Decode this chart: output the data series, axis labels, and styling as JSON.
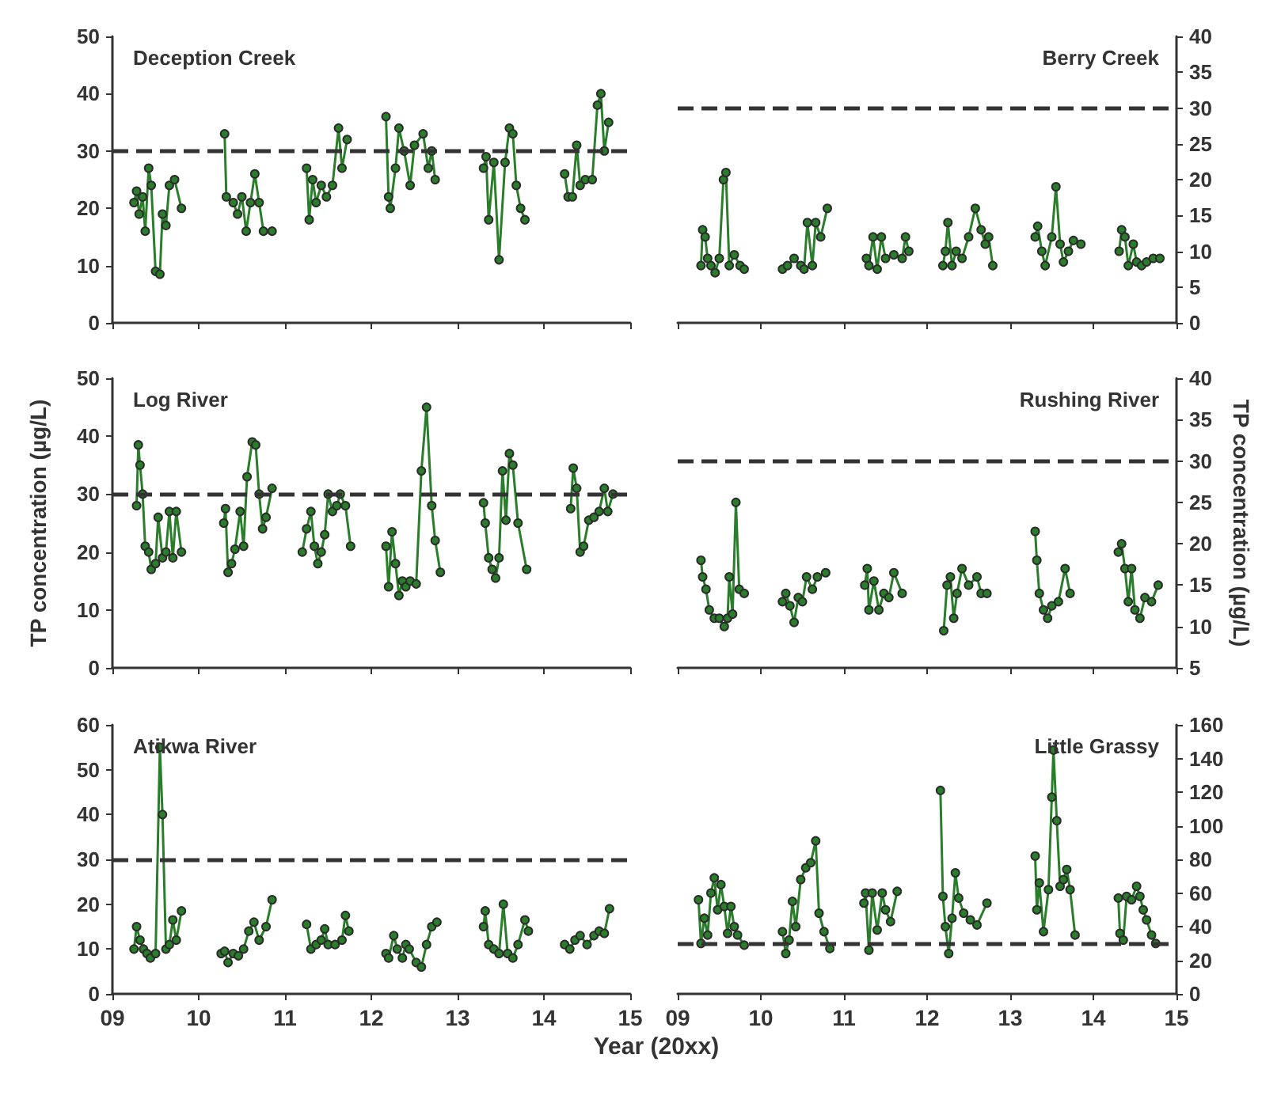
{
  "chart_data": [
    {
      "type": "line",
      "title": "Deception Creek",
      "marker": "circle",
      "tick_labels": "y",
      "xlim": [
        9,
        15
      ],
      "xticks": [
        {
          "value": 9,
          "label": null
        },
        {
          "value": 10,
          "label": null
        },
        {
          "value": 11,
          "label": null
        },
        {
          "value": 12,
          "label": null
        },
        {
          "value": 13,
          "label": null
        },
        {
          "value": 14,
          "label": null
        },
        {
          "value": 15,
          "label": null
        }
      ],
      "ylim": [
        0,
        50
      ],
      "yticks": [
        0,
        10,
        20,
        30,
        40,
        50
      ],
      "ref_lines": [
        {
          "axis": "y",
          "value": 30,
          "line_style": "dashed",
          "color": "#333333"
        }
      ],
      "series": [
        {
          "color": "#2a7d2a",
          "x": [
            9.25,
            9.28,
            9.31,
            9.35,
            9.38,
            9.42,
            9.45,
            9.5,
            9.55,
            9.58,
            9.62,
            9.66,
            9.72,
            9.8,
            10.05,
            10.3,
            10.32,
            10.4,
            10.45,
            10.5,
            10.55,
            10.6,
            10.65,
            10.7,
            10.75,
            10.85,
            11.05,
            11.25,
            11.28,
            11.32,
            11.36,
            11.42,
            11.48,
            11.55,
            11.62,
            11.66,
            11.72,
            12.0,
            12.17,
            12.2,
            12.22,
            12.28,
            12.32,
            12.38,
            12.45,
            12.5,
            12.6,
            12.66,
            12.7,
            12.74,
            13.0,
            13.3,
            13.33,
            13.36,
            13.42,
            13.48,
            13.55,
            13.6,
            13.64,
            13.68,
            13.73,
            13.78,
            14.0,
            14.24,
            14.28,
            14.33,
            14.38,
            14.42,
            14.48,
            14.56,
            14.62,
            14.66,
            14.7,
            14.75
          ],
          "values": [
            21,
            23,
            19,
            22,
            16,
            27,
            24,
            9,
            8.5,
            19,
            17,
            24,
            25,
            20,
            null,
            33,
            22,
            21,
            19,
            22,
            16,
            21,
            26,
            21,
            16,
            16,
            null,
            27,
            18,
            25,
            21,
            24,
            22,
            24,
            34,
            27,
            32,
            null,
            36,
            22,
            20,
            27,
            34,
            30,
            24,
            31,
            33,
            27,
            30,
            25,
            null,
            27,
            29,
            18,
            28,
            11,
            28,
            34,
            33,
            24,
            20,
            18,
            null,
            26,
            22,
            22,
            31,
            24,
            25,
            25,
            38,
            40,
            30,
            35
          ]
        }
      ]
    },
    {
      "type": "line",
      "title": "Berry Creek",
      "marker": "circle",
      "tick_labels": "y",
      "xlim": [
        9,
        15
      ],
      "xticks": [
        {
          "value": 9,
          "label": null
        },
        {
          "value": 10,
          "label": null
        },
        {
          "value": 11,
          "label": null
        },
        {
          "value": 12,
          "label": null
        },
        {
          "value": 13,
          "label": null
        },
        {
          "value": 14,
          "label": null
        },
        {
          "value": 15,
          "label": null
        }
      ],
      "ylim": [
        0,
        40
      ],
      "yticks": [
        0,
        5,
        10,
        15,
        20,
        25,
        30,
        35,
        40
      ],
      "ref_lines": [
        {
          "axis": "y",
          "value": 30,
          "line_style": "dashed",
          "color": "#333333"
        }
      ],
      "series": [
        {
          "color": "#2a7d2a",
          "x": [
            9.28,
            9.3,
            9.33,
            9.36,
            9.4,
            9.45,
            9.5,
            9.55,
            9.58,
            9.62,
            9.68,
            9.75,
            9.8,
            10.05,
            10.26,
            10.32,
            10.4,
            10.48,
            10.52,
            10.56,
            10.62,
            10.66,
            10.72,
            10.8,
            11.05,
            11.27,
            11.3,
            11.35,
            11.4,
            11.45,
            11.5,
            11.6,
            11.7,
            11.74,
            11.78,
            12.0,
            12.19,
            12.22,
            12.25,
            12.3,
            12.35,
            12.42,
            12.5,
            12.58,
            12.65,
            12.7,
            12.74,
            12.79,
            13.05,
            13.3,
            13.33,
            13.38,
            13.42,
            13.5,
            13.55,
            13.6,
            13.64,
            13.7,
            13.76,
            13.85,
            14.1,
            14.31,
            14.34,
            14.38,
            14.42,
            14.48,
            14.52,
            14.58,
            14.64,
            14.72,
            14.8
          ],
          "values": [
            8,
            13,
            12,
            9,
            8,
            7,
            9,
            20,
            21,
            8,
            9.5,
            8,
            7.5,
            null,
            7.5,
            8,
            9,
            8,
            7.5,
            14,
            8,
            14,
            12,
            16,
            null,
            9,
            8,
            12,
            7.5,
            12,
            9,
            9.5,
            9,
            12,
            10,
            null,
            8,
            10,
            14,
            8,
            10,
            9,
            12,
            16,
            13,
            11,
            12,
            8,
            null,
            12,
            13.5,
            10,
            8,
            12,
            19,
            11,
            8.5,
            10,
            11.5,
            11,
            null,
            10,
            13,
            12,
            8,
            11,
            8.5,
            8,
            8.5,
            9,
            9
          ]
        }
      ]
    },
    {
      "type": "line",
      "title": "Log River",
      "ylabel": "TP concentration (µg/L)",
      "marker": "circle",
      "tick_labels": "y",
      "xlim": [
        9,
        15
      ],
      "xticks": [
        {
          "value": 9,
          "label": null
        },
        {
          "value": 10,
          "label": null
        },
        {
          "value": 11,
          "label": null
        },
        {
          "value": 12,
          "label": null
        },
        {
          "value": 13,
          "label": null
        },
        {
          "value": 14,
          "label": null
        },
        {
          "value": 15,
          "label": null
        }
      ],
      "ylim": [
        0,
        50
      ],
      "yticks": [
        0,
        10,
        20,
        30,
        40,
        50
      ],
      "ref_lines": [
        {
          "axis": "y",
          "value": 30,
          "line_style": "dashed",
          "color": "#333333"
        }
      ],
      "series": [
        {
          "color": "#2a7d2a",
          "x": [
            9.28,
            9.3,
            9.32,
            9.35,
            9.38,
            9.42,
            9.45,
            9.5,
            9.53,
            9.58,
            9.62,
            9.66,
            9.7,
            9.74,
            9.8,
            10.05,
            10.29,
            10.31,
            10.34,
            10.38,
            10.42,
            10.48,
            10.52,
            10.56,
            10.62,
            10.66,
            10.7,
            10.74,
            10.78,
            10.85,
            11.05,
            11.2,
            11.25,
            11.3,
            11.34,
            11.38,
            11.42,
            11.46,
            11.5,
            11.55,
            11.6,
            11.64,
            11.7,
            11.76,
            12.0,
            12.17,
            12.2,
            12.24,
            12.28,
            12.32,
            12.36,
            12.4,
            12.45,
            12.52,
            12.58,
            12.64,
            12.7,
            12.74,
            12.8,
            13.05,
            13.3,
            13.32,
            13.36,
            13.4,
            13.44,
            13.48,
            13.52,
            13.56,
            13.6,
            13.64,
            13.7,
            13.8,
            14.1,
            14.31,
            14.34,
            14.38,
            14.42,
            14.46,
            14.52,
            14.58,
            14.64,
            14.7,
            14.74,
            14.8
          ],
          "values": [
            28,
            38.5,
            35,
            30,
            21,
            20,
            17,
            18,
            26,
            19,
            20,
            27,
            19,
            27,
            20,
            null,
            25,
            27.5,
            16.5,
            18,
            20.5,
            27,
            21,
            33,
            39,
            38.5,
            30,
            24,
            26,
            31,
            null,
            20,
            24,
            27,
            21,
            18,
            20,
            23,
            30,
            27,
            28,
            30,
            28,
            21,
            null,
            21,
            14,
            23.5,
            18,
            12.5,
            15,
            14,
            15,
            14.5,
            34,
            45,
            28,
            22,
            16.5,
            null,
            28.5,
            25,
            19,
            17,
            15.5,
            19,
            34,
            25.5,
            37,
            35,
            25,
            17,
            null,
            27.5,
            34.5,
            31,
            20,
            21,
            25.5,
            26,
            27,
            31,
            27,
            30
          ]
        }
      ]
    },
    {
      "type": "line",
      "title": "Rushing River",
      "ylabel": "TP concentration (µg/L)",
      "marker": "circle",
      "tick_labels": "y",
      "xlim": [
        9,
        15
      ],
      "xticks": [
        {
          "value": 9,
          "label": null
        },
        {
          "value": 10,
          "label": null
        },
        {
          "value": 11,
          "label": null
        },
        {
          "value": 12,
          "label": null
        },
        {
          "value": 13,
          "label": null
        },
        {
          "value": 14,
          "label": null
        },
        {
          "value": 15,
          "label": null
        }
      ],
      "ylim": [
        5,
        40
      ],
      "yticks": [
        5,
        10,
        15,
        20,
        25,
        30,
        35,
        40
      ],
      "ref_lines": [
        {
          "axis": "y",
          "value": 30,
          "line_style": "dashed",
          "color": "#333333"
        }
      ],
      "series": [
        {
          "color": "#2a7d2a",
          "x": [
            9.28,
            9.3,
            9.34,
            9.38,
            9.44,
            9.5,
            9.56,
            9.6,
            9.62,
            9.66,
            9.7,
            9.74,
            9.8,
            10.05,
            10.26,
            10.3,
            10.35,
            10.4,
            10.45,
            10.5,
            10.55,
            10.62,
            10.68,
            10.78,
            11.05,
            11.25,
            11.28,
            11.3,
            11.36,
            11.42,
            11.48,
            11.54,
            11.6,
            11.7,
            12.0,
            12.2,
            12.24,
            12.28,
            12.32,
            12.36,
            12.42,
            12.5,
            12.6,
            12.65,
            12.72,
            13.05,
            13.3,
            13.32,
            13.35,
            13.4,
            13.45,
            13.5,
            13.58,
            13.66,
            13.72,
            14.05,
            14.3,
            14.34,
            14.38,
            14.42,
            14.46,
            14.5,
            14.56,
            14.62,
            14.7,
            14.78
          ],
          "values": [
            18,
            16,
            14.5,
            12,
            11,
            11,
            10,
            11,
            16,
            11.5,
            25,
            14.5,
            14,
            null,
            13,
            14,
            12.5,
            10.5,
            13.5,
            13,
            16,
            14.5,
            16,
            16.5,
            null,
            15,
            17,
            12,
            15.5,
            12,
            14,
            13.5,
            16.5,
            14,
            null,
            9.5,
            15,
            16,
            11,
            14,
            17,
            15,
            16,
            14,
            14,
            null,
            21.5,
            18,
            14,
            12,
            11,
            12.5,
            13,
            17,
            14,
            null,
            19,
            20,
            17,
            13,
            17,
            12,
            11,
            13.5,
            13,
            15
          ]
        }
      ]
    },
    {
      "type": "line",
      "title": "Atikwa River",
      "xlabel": "Year (20xx)",
      "marker": "circle",
      "xlim": [
        9,
        15
      ],
      "xticks": [
        {
          "value": 9,
          "label": "09"
        },
        10,
        11,
        12,
        13,
        14,
        15
      ],
      "ylim": [
        0,
        60
      ],
      "yticks": [
        0,
        10,
        20,
        30,
        40,
        50,
        60
      ],
      "ref_lines": [
        {
          "axis": "y",
          "value": 30,
          "line_style": "dashed",
          "color": "#333333"
        }
      ],
      "series": [
        {
          "color": "#2a7d2a",
          "x": [
            9.25,
            9.28,
            9.32,
            9.36,
            9.4,
            9.44,
            9.5,
            9.55,
            9.58,
            9.62,
            9.66,
            9.7,
            9.74,
            9.8,
            10.05,
            10.26,
            10.3,
            10.34,
            10.4,
            10.46,
            10.52,
            10.58,
            10.64,
            10.7,
            10.78,
            10.85,
            11.05,
            11.25,
            11.3,
            11.36,
            11.42,
            11.46,
            11.5,
            11.58,
            11.66,
            11.7,
            11.74,
            12.0,
            12.17,
            12.2,
            12.26,
            12.3,
            12.36,
            12.4,
            12.44,
            12.52,
            12.58,
            12.64,
            12.7,
            12.76,
            13.05,
            13.3,
            13.32,
            13.36,
            13.42,
            13.48,
            13.53,
            13.58,
            13.64,
            13.7,
            13.78,
            13.82,
            14.05,
            14.24,
            14.3,
            14.36,
            14.42,
            14.5,
            14.58,
            14.64,
            14.7,
            14.76
          ],
          "values": [
            10,
            15,
            12,
            10,
            9,
            8,
            9,
            55,
            40,
            10,
            11,
            16.5,
            12,
            18.5,
            null,
            9,
            9.5,
            7,
            9,
            8.5,
            10,
            14,
            16,
            12,
            15,
            21,
            null,
            15.5,
            10,
            11,
            12,
            14.5,
            11,
            11,
            12,
            17.5,
            14,
            null,
            9,
            8,
            13,
            10,
            8,
            11,
            10,
            7,
            6,
            11,
            15,
            16,
            null,
            15,
            18.5,
            11,
            10,
            9,
            20,
            9,
            8,
            11,
            16.5,
            14,
            null,
            11,
            10,
            12,
            13,
            11,
            13,
            14,
            13.5,
            19
          ]
        }
      ]
    },
    {
      "type": "line",
      "title": "Little Grassy",
      "marker": "circle",
      "xlim": [
        9,
        15
      ],
      "xticks": [
        {
          "value": 9,
          "label": "09"
        },
        10,
        11,
        12,
        13,
        14,
        15
      ],
      "ylim": [
        0,
        160
      ],
      "yticks": [
        0,
        20,
        40,
        60,
        80,
        100,
        120,
        140,
        160
      ],
      "ref_lines": [
        {
          "axis": "y",
          "value": 30,
          "line_style": "dashed",
          "color": "#333333"
        }
      ],
      "series": [
        {
          "color": "#2a7d2a",
          "x": [
            9.25,
            9.28,
            9.32,
            9.36,
            9.4,
            9.44,
            9.48,
            9.52,
            9.56,
            9.6,
            9.64,
            9.68,
            9.72,
            9.8,
            10.05,
            10.26,
            10.3,
            10.34,
            10.38,
            10.42,
            10.48,
            10.54,
            10.6,
            10.66,
            10.7,
            10.76,
            10.83,
            11.05,
            11.24,
            11.26,
            11.3,
            11.34,
            11.4,
            11.46,
            11.5,
            11.56,
            11.64,
            11.9,
            12.16,
            12.19,
            12.22,
            12.26,
            12.3,
            12.34,
            12.38,
            12.44,
            12.52,
            12.6,
            12.72,
            13.05,
            13.3,
            13.32,
            13.35,
            13.4,
            13.46,
            13.5,
            13.52,
            13.56,
            13.6,
            13.64,
            13.68,
            13.72,
            13.78,
            14.05,
            14.3,
            14.32,
            14.36,
            14.4,
            14.46,
            14.52,
            14.56,
            14.6,
            14.64,
            14.7,
            14.75
          ],
          "values": [
            56,
            30,
            45,
            35,
            60,
            69,
            50,
            65,
            52,
            36,
            52,
            40,
            35,
            29,
            null,
            37,
            24,
            32,
            55,
            40,
            68,
            75,
            78,
            91,
            48,
            37,
            27,
            null,
            54,
            60,
            26,
            60,
            38,
            60,
            50,
            43,
            61,
            null,
            121,
            58,
            40,
            24,
            45,
            72,
            57,
            48,
            44,
            41,
            54,
            null,
            82,
            50,
            66,
            37,
            62,
            117,
            145,
            103,
            64,
            68,
            74,
            62,
            35,
            null,
            57,
            36,
            32,
            58,
            56,
            64,
            58,
            50,
            44,
            35,
            30
          ]
        }
      ]
    }
  ]
}
